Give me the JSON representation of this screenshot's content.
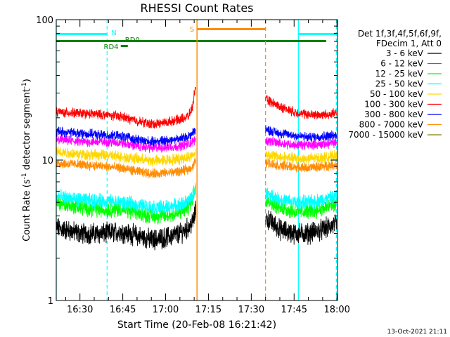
{
  "chart_data": {
    "type": "line",
    "title": "RHESSI Count Rates",
    "xlabel": "Start Time (20-Feb-08 16:21:42)",
    "ylabel_main": "Count Rate (s",
    "ylabel_sup1": "-1",
    "ylabel_mid": " detector segment",
    "ylabel_sup2": "-1",
    "ylabel_end": ")",
    "ylog": true,
    "ylim": [
      1,
      100
    ],
    "y_ticks": [
      {
        "v": 1,
        "label": "1"
      },
      {
        "v": 10,
        "label": "10"
      },
      {
        "v": 100,
        "label": "100"
      }
    ],
    "xlim": [
      21.7,
      120.2
    ],
    "x_ticks": [
      {
        "v": 30,
        "label": "16:30"
      },
      {
        "v": 45,
        "label": "16:45"
      },
      {
        "v": 60,
        "label": "17:00"
      },
      {
        "v": 75,
        "label": "17:15"
      },
      {
        "v": 90,
        "label": "17:30"
      },
      {
        "v": 105,
        "label": "17:45"
      },
      {
        "v": 120,
        "label": "18:00"
      }
    ],
    "x_unit": "minutes after 16:00 UT",
    "legend_header": [
      "Det 1f,3f,4f,5f,6f,9f,",
      "FDecim 1, Att 0"
    ],
    "legend_position": "right",
    "data_gap": [
      71.0,
      95.0
    ],
    "series": [
      {
        "name": "3 - 6 keV",
        "color": "#000000",
        "x": [
          21.7,
          30,
          39,
          44,
          50,
          55,
          60,
          65,
          68,
          69.5,
          70.5,
          95,
          100,
          105,
          110,
          115,
          120
        ],
        "y": [
          3.3,
          3.0,
          3.0,
          3.1,
          2.9,
          2.7,
          2.8,
          3.0,
          3.3,
          3.6,
          4.3,
          3.9,
          3.2,
          3.0,
          3.0,
          3.2,
          3.5
        ]
      },
      {
        "name": "6 - 12 keV",
        "color": "#ff00ff",
        "x": [
          21.7,
          30,
          39,
          44,
          50,
          55,
          60,
          65,
          68,
          69.5,
          70.5,
          95,
          100,
          105,
          110,
          115,
          120
        ],
        "y": [
          14.0,
          13.5,
          13.5,
          13.3,
          12.6,
          12.2,
          12.3,
          12.6,
          13.0,
          13.5,
          14.0,
          13.8,
          13.2,
          12.9,
          12.8,
          13.0,
          13.3
        ]
      },
      {
        "name": "12 - 25 keV",
        "color": "#00ff00",
        "x": [
          21.7,
          30,
          39,
          44,
          50,
          55,
          60,
          65,
          68,
          69.5,
          70.5,
          95,
          100,
          105,
          110,
          115,
          120
        ],
        "y": [
          5.0,
          4.6,
          4.4,
          4.5,
          4.2,
          4.0,
          4.0,
          4.2,
          4.6,
          5.3,
          6.5,
          5.3,
          4.6,
          4.3,
          4.3,
          4.5,
          4.9
        ]
      },
      {
        "name": "25 - 50 keV",
        "color": "#00ffff",
        "x": [
          21.7,
          30,
          39,
          44,
          50,
          55,
          60,
          65,
          68,
          69.5,
          70.5,
          95,
          100,
          105,
          110,
          115,
          120
        ],
        "y": [
          5.5,
          5.2,
          5.1,
          5.0,
          4.8,
          4.6,
          4.6,
          4.8,
          5.1,
          5.6,
          6.3,
          5.8,
          5.2,
          5.0,
          5.0,
          5.2,
          5.5
        ]
      },
      {
        "name": "50 - 100 keV",
        "color": "#ffd700",
        "x": [
          21.7,
          30,
          39,
          44,
          50,
          55,
          60,
          65,
          68,
          69.5,
          70.5,
          95,
          100,
          105,
          110,
          115,
          120
        ],
        "y": [
          11.5,
          11.0,
          10.8,
          10.6,
          10.2,
          9.9,
          10.0,
          10.2,
          10.5,
          10.8,
          11.3,
          11.0,
          10.5,
          10.3,
          10.2,
          10.4,
          10.7
        ]
      },
      {
        "name": "100 - 300 keV",
        "color": "#ff0000",
        "x": [
          21.7,
          30,
          39,
          44,
          50,
          55,
          60,
          65,
          68,
          69.5,
          70.5,
          95,
          100,
          105,
          110,
          115,
          120
        ],
        "y": [
          22.0,
          21.5,
          21.0,
          20.5,
          19.0,
          18.0,
          18.5,
          19.5,
          20.5,
          24.0,
          34.0,
          27.0,
          24.0,
          22.0,
          21.0,
          21.0,
          21.5
        ]
      },
      {
        "name": "300 - 800 keV",
        "color": "#0000ff",
        "x": [
          21.7,
          30,
          39,
          44,
          50,
          55,
          60,
          65,
          68,
          69.5,
          70.5,
          95,
          100,
          105,
          110,
          115,
          120
        ],
        "y": [
          16.0,
          15.5,
          15.0,
          14.8,
          14.0,
          13.5,
          13.8,
          14.2,
          14.8,
          15.5,
          16.5,
          16.5,
          15.5,
          15.0,
          14.5,
          14.8,
          15.0
        ]
      },
      {
        "name": "800 - 7000 keV",
        "color": "#ff8c00",
        "x": [
          21.7,
          30,
          39,
          44,
          50,
          55,
          60,
          65,
          68,
          69.5,
          70.5,
          95,
          100,
          105,
          110,
          115,
          120
        ],
        "y": [
          9.5,
          9.3,
          9.0,
          8.8,
          8.3,
          8.0,
          8.1,
          8.3,
          8.6,
          9.0,
          9.8,
          9.6,
          9.1,
          8.9,
          8.8,
          9.0,
          9.3
        ]
      },
      {
        "name": "7000 - 15000 keV",
        "color": "#808000",
        "x": [],
        "y": []
      }
    ],
    "flags": {
      "saa_label": "S",
      "saa_color": "#ff8c00",
      "saa_range": [
        71.0,
        95.0
      ],
      "night_label": "N",
      "night_color": "#00ffff",
      "night_ranges": [
        [
          21.7,
          39.5
        ],
        [
          106.5,
          120.2
        ]
      ],
      "night_lines": [
        21.7,
        39.5,
        106.5,
        119.8
      ],
      "rd_labels": [
        "RD4",
        "RD0"
      ],
      "rd_color": "#008000"
    },
    "stamp": "13-Oct-2021 21:11"
  }
}
